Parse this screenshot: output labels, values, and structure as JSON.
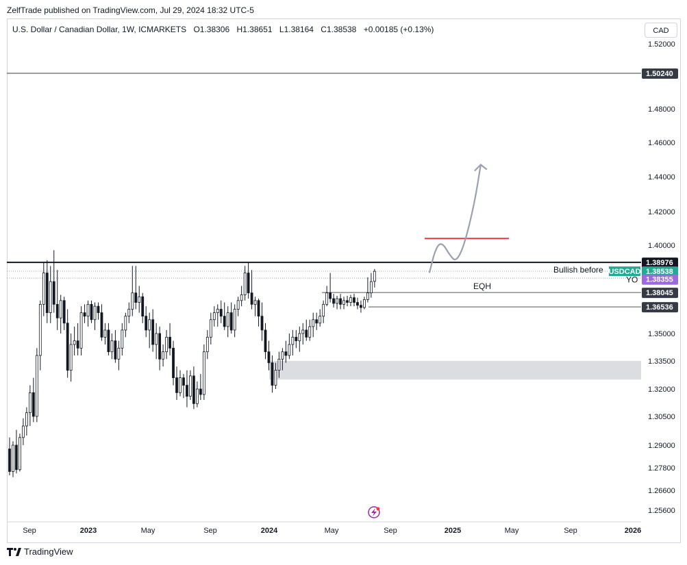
{
  "header": {
    "published": "ZelfTrade published on TradingView.com, Jul 29, 2024 18:32 UTC-5"
  },
  "legend": {
    "symbol": "U.S. Dollar / Canadian Dollar, 1W, ICMARKETS",
    "open": "O1.38306",
    "high": "H1.38651",
    "low": "L1.38164",
    "close": "C1.38538",
    "change": "+0.00185 (+0.13%)"
  },
  "currency_button": "CAD",
  "footer": {
    "brand": "TradingView"
  },
  "chart_data": {
    "type": "candlestick",
    "symbol": "USDCAD",
    "timeframe": "1W",
    "ylim": [
      1.25,
      1.53
    ],
    "y_ticks": [
      "1.52000",
      "1.48000",
      "1.46000",
      "1.44000",
      "1.42000",
      "1.40000",
      "1.35000",
      "1.33500",
      "1.32000",
      "1.30500",
      "1.29000",
      "1.27800",
      "1.26600",
      "1.25600"
    ],
    "x_ticks": [
      "Sep",
      "2023",
      "May",
      "Sep",
      "2024",
      "May",
      "Sep",
      "2025",
      "May",
      "Sep",
      "2026"
    ],
    "price_tags": [
      {
        "label": "1.50240",
        "value": 1.5024,
        "color": "#363a45"
      },
      {
        "label": "1.38976",
        "value": 1.38976,
        "color": "#131722"
      },
      {
        "label": "1.38538",
        "value": 1.38538,
        "color": "#22ab94"
      },
      {
        "label": "1.38355",
        "value": 1.38355,
        "color": "#9c6ade"
      },
      {
        "label": "1.38045",
        "value": 1.38045,
        "color": "#363a45"
      },
      {
        "label": "1.36536",
        "value": 1.36536,
        "color": "#363a45"
      }
    ],
    "symbol_tag": "USDCAD",
    "horizontal_levels": [
      1.5024,
      1.38976,
      1.38045,
      1.36536
    ],
    "annotations": {
      "bullish": "Bullish before",
      "eqh": "EQH",
      "yo": "YO"
    },
    "zone": {
      "from": 1.325,
      "to": 1.335
    },
    "target_line": 1.404,
    "candles": [
      {
        "o": 1.288,
        "h": 1.294,
        "l": 1.274,
        "c": 1.276
      },
      {
        "o": 1.276,
        "h": 1.292,
        "l": 1.273,
        "c": 1.29
      },
      {
        "o": 1.29,
        "h": 1.298,
        "l": 1.275,
        "c": 1.277
      },
      {
        "o": 1.277,
        "h": 1.296,
        "l": 1.276,
        "c": 1.294
      },
      {
        "o": 1.294,
        "h": 1.304,
        "l": 1.29,
        "c": 1.3
      },
      {
        "o": 1.3,
        "h": 1.31,
        "l": 1.295,
        "c": 1.307
      },
      {
        "o": 1.307,
        "h": 1.322,
        "l": 1.3,
        "c": 1.318
      },
      {
        "o": 1.318,
        "h": 1.326,
        "l": 1.302,
        "c": 1.305
      },
      {
        "o": 1.305,
        "h": 1.342,
        "l": 1.302,
        "c": 1.338
      },
      {
        "o": 1.338,
        "h": 1.372,
        "l": 1.33,
        "c": 1.368
      },
      {
        "o": 1.368,
        "h": 1.39,
        "l": 1.36,
        "c": 1.385
      },
      {
        "o": 1.385,
        "h": 1.391,
        "l": 1.356,
        "c": 1.362
      },
      {
        "o": 1.362,
        "h": 1.388,
        "l": 1.356,
        "c": 1.383
      },
      {
        "o": 1.383,
        "h": 1.397,
        "l": 1.362,
        "c": 1.368
      },
      {
        "o": 1.368,
        "h": 1.386,
        "l": 1.352,
        "c": 1.359
      },
      {
        "o": 1.359,
        "h": 1.378,
        "l": 1.35,
        "c": 1.372
      },
      {
        "o": 1.372,
        "h": 1.376,
        "l": 1.352,
        "c": 1.356
      },
      {
        "o": 1.356,
        "h": 1.364,
        "l": 1.326,
        "c": 1.33
      },
      {
        "o": 1.33,
        "h": 1.35,
        "l": 1.324,
        "c": 1.344
      },
      {
        "o": 1.344,
        "h": 1.354,
        "l": 1.338,
        "c": 1.346
      },
      {
        "o": 1.346,
        "h": 1.356,
        "l": 1.338,
        "c": 1.342
      },
      {
        "o": 1.342,
        "h": 1.366,
        "l": 1.338,
        "c": 1.362
      },
      {
        "o": 1.362,
        "h": 1.368,
        "l": 1.356,
        "c": 1.36
      },
      {
        "o": 1.36,
        "h": 1.372,
        "l": 1.354,
        "c": 1.368
      },
      {
        "o": 1.368,
        "h": 1.372,
        "l": 1.356,
        "c": 1.358
      },
      {
        "o": 1.358,
        "h": 1.37,
        "l": 1.352,
        "c": 1.366
      },
      {
        "o": 1.366,
        "h": 1.37,
        "l": 1.358,
        "c": 1.362
      },
      {
        "o": 1.362,
        "h": 1.368,
        "l": 1.346,
        "c": 1.348
      },
      {
        "o": 1.348,
        "h": 1.356,
        "l": 1.344,
        "c": 1.352
      },
      {
        "o": 1.352,
        "h": 1.356,
        "l": 1.338,
        "c": 1.34
      },
      {
        "o": 1.34,
        "h": 1.35,
        "l": 1.336,
        "c": 1.346
      },
      {
        "o": 1.346,
        "h": 1.352,
        "l": 1.334,
        "c": 1.336
      },
      {
        "o": 1.336,
        "h": 1.346,
        "l": 1.33,
        "c": 1.342
      },
      {
        "o": 1.342,
        "h": 1.356,
        "l": 1.338,
        "c": 1.352
      },
      {
        "o": 1.352,
        "h": 1.362,
        "l": 1.348,
        "c": 1.36
      },
      {
        "o": 1.36,
        "h": 1.37,
        "l": 1.356,
        "c": 1.364
      },
      {
        "o": 1.364,
        "h": 1.388,
        "l": 1.36,
        "c": 1.38
      },
      {
        "o": 1.38,
        "h": 1.388,
        "l": 1.364,
        "c": 1.37
      },
      {
        "o": 1.37,
        "h": 1.382,
        "l": 1.362,
        "c": 1.376
      },
      {
        "o": 1.376,
        "h": 1.38,
        "l": 1.356,
        "c": 1.36
      },
      {
        "o": 1.36,
        "h": 1.366,
        "l": 1.348,
        "c": 1.352
      },
      {
        "o": 1.352,
        "h": 1.362,
        "l": 1.342,
        "c": 1.358
      },
      {
        "o": 1.358,
        "h": 1.364,
        "l": 1.34,
        "c": 1.344
      },
      {
        "o": 1.344,
        "h": 1.356,
        "l": 1.336,
        "c": 1.35
      },
      {
        "o": 1.35,
        "h": 1.354,
        "l": 1.33,
        "c": 1.336
      },
      {
        "o": 1.336,
        "h": 1.344,
        "l": 1.332,
        "c": 1.34
      },
      {
        "o": 1.34,
        "h": 1.352,
        "l": 1.336,
        "c": 1.348
      },
      {
        "o": 1.348,
        "h": 1.356,
        "l": 1.338,
        "c": 1.342
      },
      {
        "o": 1.342,
        "h": 1.346,
        "l": 1.322,
        "c": 1.326
      },
      {
        "o": 1.326,
        "h": 1.332,
        "l": 1.314,
        "c": 1.318
      },
      {
        "o": 1.318,
        "h": 1.33,
        "l": 1.316,
        "c": 1.326
      },
      {
        "o": 1.326,
        "h": 1.328,
        "l": 1.315,
        "c": 1.322
      },
      {
        "o": 1.322,
        "h": 1.33,
        "l": 1.31,
        "c": 1.316
      },
      {
        "o": 1.316,
        "h": 1.33,
        "l": 1.314,
        "c": 1.327
      },
      {
        "o": 1.327,
        "h": 1.332,
        "l": 1.309,
        "c": 1.312
      },
      {
        "o": 1.312,
        "h": 1.324,
        "l": 1.31,
        "c": 1.32
      },
      {
        "o": 1.32,
        "h": 1.328,
        "l": 1.314,
        "c": 1.317
      },
      {
        "o": 1.317,
        "h": 1.344,
        "l": 1.314,
        "c": 1.34
      },
      {
        "o": 1.34,
        "h": 1.352,
        "l": 1.336,
        "c": 1.348
      },
      {
        "o": 1.348,
        "h": 1.362,
        "l": 1.344,
        "c": 1.358
      },
      {
        "o": 1.358,
        "h": 1.366,
        "l": 1.354,
        "c": 1.362
      },
      {
        "o": 1.362,
        "h": 1.368,
        "l": 1.354,
        "c": 1.364
      },
      {
        "o": 1.364,
        "h": 1.372,
        "l": 1.356,
        "c": 1.36
      },
      {
        "o": 1.36,
        "h": 1.37,
        "l": 1.352,
        "c": 1.354
      },
      {
        "o": 1.354,
        "h": 1.366,
        "l": 1.348,
        "c": 1.362
      },
      {
        "o": 1.362,
        "h": 1.37,
        "l": 1.35,
        "c": 1.352
      },
      {
        "o": 1.352,
        "h": 1.368,
        "l": 1.348,
        "c": 1.364
      },
      {
        "o": 1.364,
        "h": 1.376,
        "l": 1.36,
        "c": 1.372
      },
      {
        "o": 1.372,
        "h": 1.382,
        "l": 1.366,
        "c": 1.378
      },
      {
        "o": 1.378,
        "h": 1.388,
        "l": 1.372,
        "c": 1.385
      },
      {
        "o": 1.385,
        "h": 1.39,
        "l": 1.374,
        "c": 1.38
      },
      {
        "o": 1.38,
        "h": 1.386,
        "l": 1.364,
        "c": 1.368
      },
      {
        "o": 1.368,
        "h": 1.376,
        "l": 1.36,
        "c": 1.372
      },
      {
        "o": 1.372,
        "h": 1.374,
        "l": 1.354,
        "c": 1.36
      },
      {
        "o": 1.36,
        "h": 1.37,
        "l": 1.346,
        "c": 1.352
      },
      {
        "o": 1.352,
        "h": 1.356,
        "l": 1.336,
        "c": 1.34
      },
      {
        "o": 1.34,
        "h": 1.346,
        "l": 1.33,
        "c": 1.334
      },
      {
        "o": 1.334,
        "h": 1.338,
        "l": 1.318,
        "c": 1.322
      },
      {
        "o": 1.322,
        "h": 1.334,
        "l": 1.32,
        "c": 1.33
      },
      {
        "o": 1.33,
        "h": 1.34,
        "l": 1.326,
        "c": 1.336
      },
      {
        "o": 1.336,
        "h": 1.342,
        "l": 1.33,
        "c": 1.34
      },
      {
        "o": 1.34,
        "h": 1.346,
        "l": 1.334,
        "c": 1.338
      },
      {
        "o": 1.338,
        "h": 1.35,
        "l": 1.336,
        "c": 1.344
      },
      {
        "o": 1.344,
        "h": 1.352,
        "l": 1.338,
        "c": 1.348
      },
      {
        "o": 1.348,
        "h": 1.352,
        "l": 1.342,
        "c": 1.346
      },
      {
        "o": 1.346,
        "h": 1.354,
        "l": 1.34,
        "c": 1.35
      },
      {
        "o": 1.35,
        "h": 1.356,
        "l": 1.344,
        "c": 1.352
      },
      {
        "o": 1.352,
        "h": 1.358,
        "l": 1.346,
        "c": 1.348
      },
      {
        "o": 1.348,
        "h": 1.358,
        "l": 1.346,
        "c": 1.354
      },
      {
        "o": 1.354,
        "h": 1.362,
        "l": 1.348,
        "c": 1.358
      },
      {
        "o": 1.358,
        "h": 1.362,
        "l": 1.352,
        "c": 1.356
      },
      {
        "o": 1.356,
        "h": 1.364,
        "l": 1.354,
        "c": 1.36
      },
      {
        "o": 1.36,
        "h": 1.372,
        "l": 1.356,
        "c": 1.368
      },
      {
        "o": 1.368,
        "h": 1.382,
        "l": 1.366,
        "c": 1.38
      },
      {
        "o": 1.38,
        "h": 1.385,
        "l": 1.37,
        "c": 1.374
      },
      {
        "o": 1.374,
        "h": 1.379,
        "l": 1.365,
        "c": 1.369
      },
      {
        "o": 1.369,
        "h": 1.377,
        "l": 1.364,
        "c": 1.374
      },
      {
        "o": 1.374,
        "h": 1.379,
        "l": 1.364,
        "c": 1.368
      },
      {
        "o": 1.368,
        "h": 1.376,
        "l": 1.364,
        "c": 1.372
      },
      {
        "o": 1.372,
        "h": 1.377,
        "l": 1.366,
        "c": 1.37
      },
      {
        "o": 1.37,
        "h": 1.378,
        "l": 1.366,
        "c": 1.375
      },
      {
        "o": 1.375,
        "h": 1.379,
        "l": 1.366,
        "c": 1.37
      },
      {
        "o": 1.37,
        "h": 1.375,
        "l": 1.364,
        "c": 1.367
      },
      {
        "o": 1.367,
        "h": 1.372,
        "l": 1.362,
        "c": 1.365
      },
      {
        "o": 1.365,
        "h": 1.376,
        "l": 1.364,
        "c": 1.373
      },
      {
        "o": 1.373,
        "h": 1.384,
        "l": 1.37,
        "c": 1.38
      },
      {
        "o": 1.38,
        "h": 1.385,
        "l": 1.375,
        "c": 1.383
      },
      {
        "o": 1.38306,
        "h": 1.38651,
        "l": 1.38164,
        "c": 1.38538
      }
    ],
    "projection_path": [
      [
        0,
        1.385
      ],
      [
        3,
        1.398
      ],
      [
        6,
        1.402
      ],
      [
        10,
        1.394
      ],
      [
        13,
        1.39
      ],
      [
        17,
        1.4
      ],
      [
        22,
        1.425
      ],
      [
        25,
        1.447
      ]
    ]
  }
}
